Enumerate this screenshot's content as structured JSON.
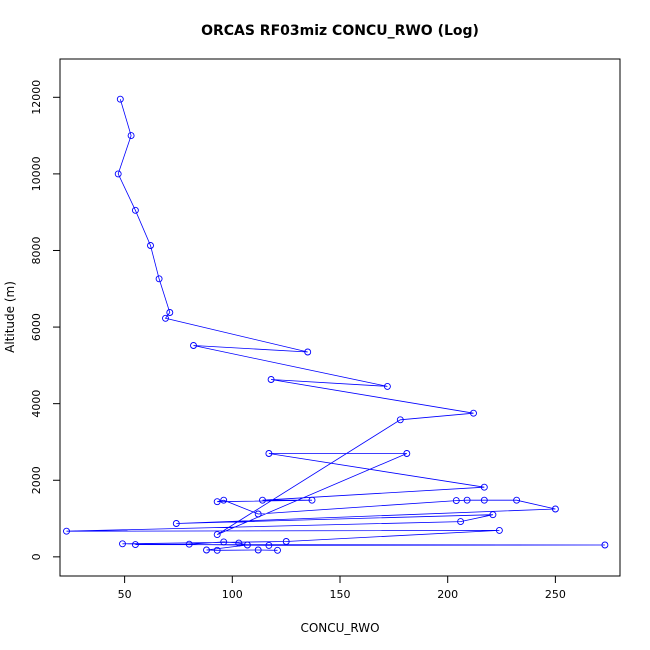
{
  "chart_data": {
    "type": "line",
    "title": "ORCAS RF03miz CONCU_RWO (Log)",
    "xlabel": "CONCU_RWO",
    "ylabel": "Altitude (m)",
    "xlim": [
      20,
      280
    ],
    "ylim": [
      -500,
      13000
    ],
    "x_ticks": [
      50,
      100,
      150,
      200,
      250
    ],
    "y_ticks": [
      0,
      2000,
      4000,
      6000,
      8000,
      10000,
      12000
    ],
    "series_color": "#0000ff",
    "marker": "open-circle",
    "grid": false,
    "legend": "none",
    "series": [
      {
        "x": [
          48,
          53,
          47,
          55,
          62,
          66,
          71,
          69,
          135,
          82,
          172,
          118,
          212,
          178,
          93,
          181,
          117,
          217,
          114,
          137,
          93,
          96,
          112,
          204,
          209,
          217,
          232,
          250,
          74,
          221,
          206,
          23,
          224,
          125,
          49,
          117,
          273,
          55,
          80,
          96,
          103,
          107,
          88,
          93,
          112,
          121
        ],
        "y": [
          11950,
          11000,
          10000,
          9050,
          8130,
          7260,
          6380,
          6230,
          5350,
          5520,
          4450,
          4630,
          3750,
          3580,
          580,
          2700,
          2700,
          1820,
          1480,
          1480,
          1440,
          1480,
          1120,
          1470,
          1480,
          1480,
          1480,
          1250,
          870,
          1100,
          920,
          670,
          690,
          400,
          340,
          300,
          310,
          320,
          330,
          390,
          360,
          310,
          180,
          170,
          180,
          170
        ]
      }
    ]
  }
}
